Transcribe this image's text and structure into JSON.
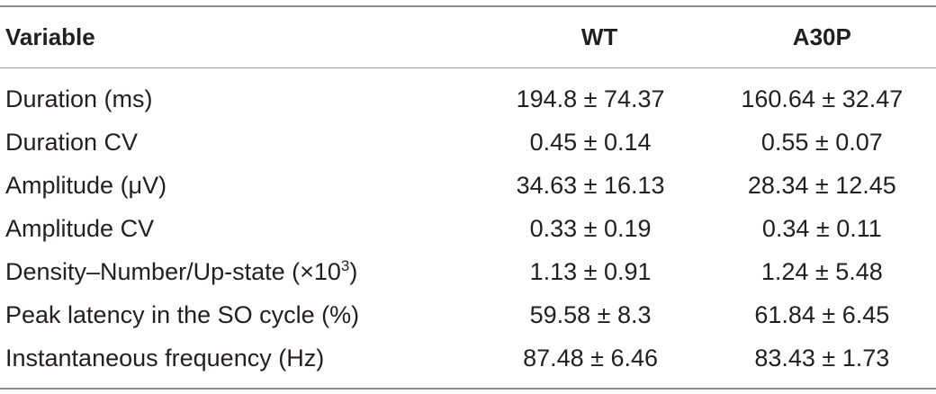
{
  "table": {
    "headers": [
      "Variable",
      "WT",
      "A30P"
    ],
    "rows": [
      {
        "variable": "Duration (ms)",
        "wt": "194.8 ± 74.37",
        "a30p": "160.64 ± 32.47"
      },
      {
        "variable": "Duration CV",
        "wt": "0.45 ± 0.14",
        "a30p": "0.55 ± 0.07"
      },
      {
        "variable": "Amplitude (μV)",
        "wt": "34.63 ± 16.13",
        "a30p": "28.34 ± 12.45"
      },
      {
        "variable": "Amplitude CV",
        "wt": "0.33 ± 0.19",
        "a30p": "0.34 ± 0.11"
      },
      {
        "variable": "Density–Number/Up-state (×10",
        "variable_sup": "3",
        "variable_suffix": ")",
        "wt": "1.13 ± 0.91",
        "a30p": "1.24 ± 5.48"
      },
      {
        "variable": "Peak latency in the SO cycle (%)",
        "wt": "59.58 ± 8.3",
        "a30p": "61.84 ± 6.45"
      },
      {
        "variable": "Instantaneous frequency (Hz)",
        "wt": "87.48 ± 6.46",
        "a30p": "83.43 ± 1.73"
      }
    ]
  }
}
